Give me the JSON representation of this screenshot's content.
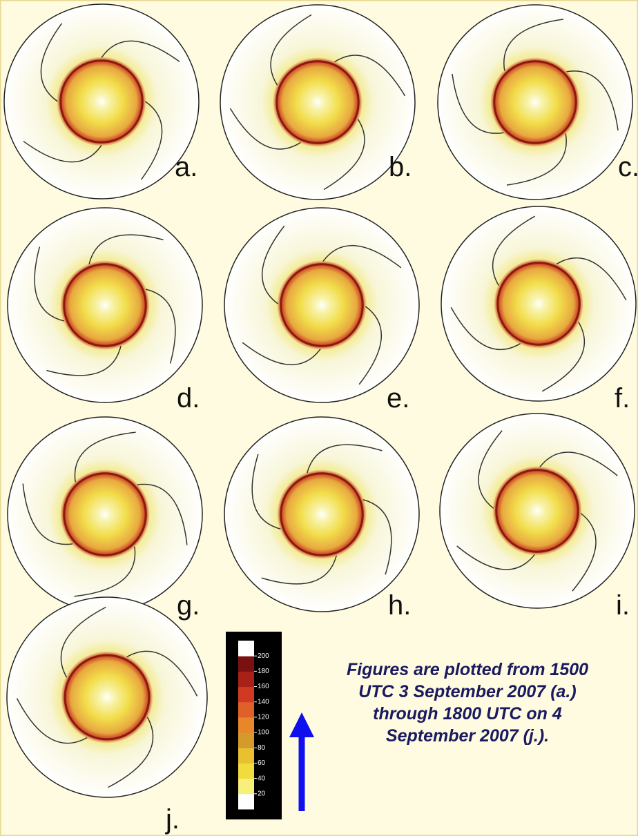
{
  "panels": [
    "a.",
    "b.",
    "c.",
    "d.",
    "e.",
    "f.",
    "g.",
    "h.",
    "i.",
    "j."
  ],
  "colorbar": {
    "ticks": [
      20,
      40,
      60,
      80,
      100,
      120,
      140,
      160,
      180,
      200
    ],
    "colors": [
      "#ffffff",
      "#f7f07a",
      "#f0dc3c",
      "#e8c030",
      "#d49a2a",
      "#e8862a",
      "#e0602a",
      "#d03a22",
      "#a82018",
      "#7a1010",
      "#ffffff"
    ]
  },
  "caption": [
    "Figures are plotted from 1500",
    "UTC 3 September 2007 (a.)",
    "through 1800 UTC on 4",
    "September 2007 (j.)."
  ]
}
